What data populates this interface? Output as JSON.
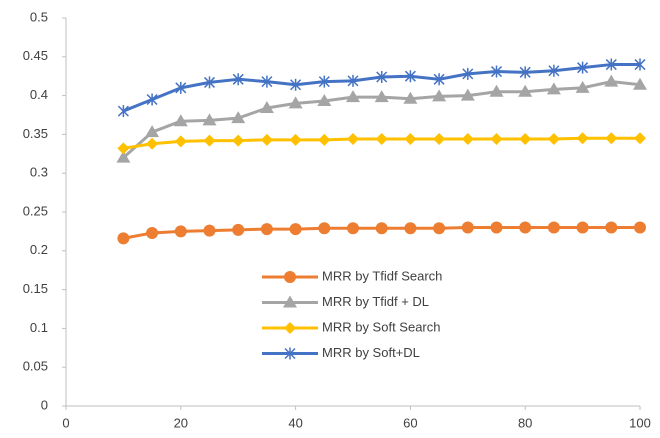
{
  "chart_data": {
    "type": "line",
    "x": [
      10,
      15,
      20,
      25,
      30,
      35,
      40,
      45,
      50,
      55,
      60,
      65,
      70,
      75,
      80,
      85,
      90,
      95,
      100
    ],
    "series": [
      {
        "name": "MRR by Tfidf Search",
        "color": "#ED7D31",
        "marker": "circle",
        "values": [
          0.216,
          0.223,
          0.225,
          0.226,
          0.227,
          0.228,
          0.228,
          0.229,
          0.229,
          0.229,
          0.229,
          0.229,
          0.23,
          0.23,
          0.23,
          0.23,
          0.23,
          0.23,
          0.23
        ]
      },
      {
        "name": "MRR by Tfidf + DL",
        "color": "#A5A5A5",
        "marker": "triangle",
        "values": [
          0.32,
          0.353,
          0.367,
          0.368,
          0.371,
          0.384,
          0.39,
          0.393,
          0.398,
          0.398,
          0.396,
          0.399,
          0.4,
          0.405,
          0.405,
          0.408,
          0.41,
          0.418,
          0.414
        ]
      },
      {
        "name": "MRR by Soft Search",
        "color": "#FFC000",
        "marker": "diamond",
        "values": [
          0.332,
          0.338,
          0.341,
          0.342,
          0.342,
          0.343,
          0.343,
          0.343,
          0.344,
          0.344,
          0.344,
          0.344,
          0.344,
          0.344,
          0.344,
          0.344,
          0.345,
          0.345,
          0.345
        ]
      },
      {
        "name": "MRR by Soft+DL",
        "color": "#4472C4",
        "marker": "asterisk",
        "values": [
          0.38,
          0.395,
          0.41,
          0.417,
          0.421,
          0.418,
          0.414,
          0.418,
          0.419,
          0.424,
          0.425,
          0.421,
          0.428,
          0.431,
          0.43,
          0.432,
          0.436,
          0.44,
          0.44
        ]
      }
    ],
    "xlim": [
      0,
      100
    ],
    "xticks": [
      0,
      20,
      40,
      60,
      80,
      100
    ],
    "ylim": [
      0,
      0.5
    ],
    "yticks": [
      0,
      0.05,
      0.1,
      0.15,
      0.2,
      0.25,
      0.3,
      0.35,
      0.4,
      0.45,
      0.5
    ],
    "grid": false,
    "legend": "center"
  }
}
